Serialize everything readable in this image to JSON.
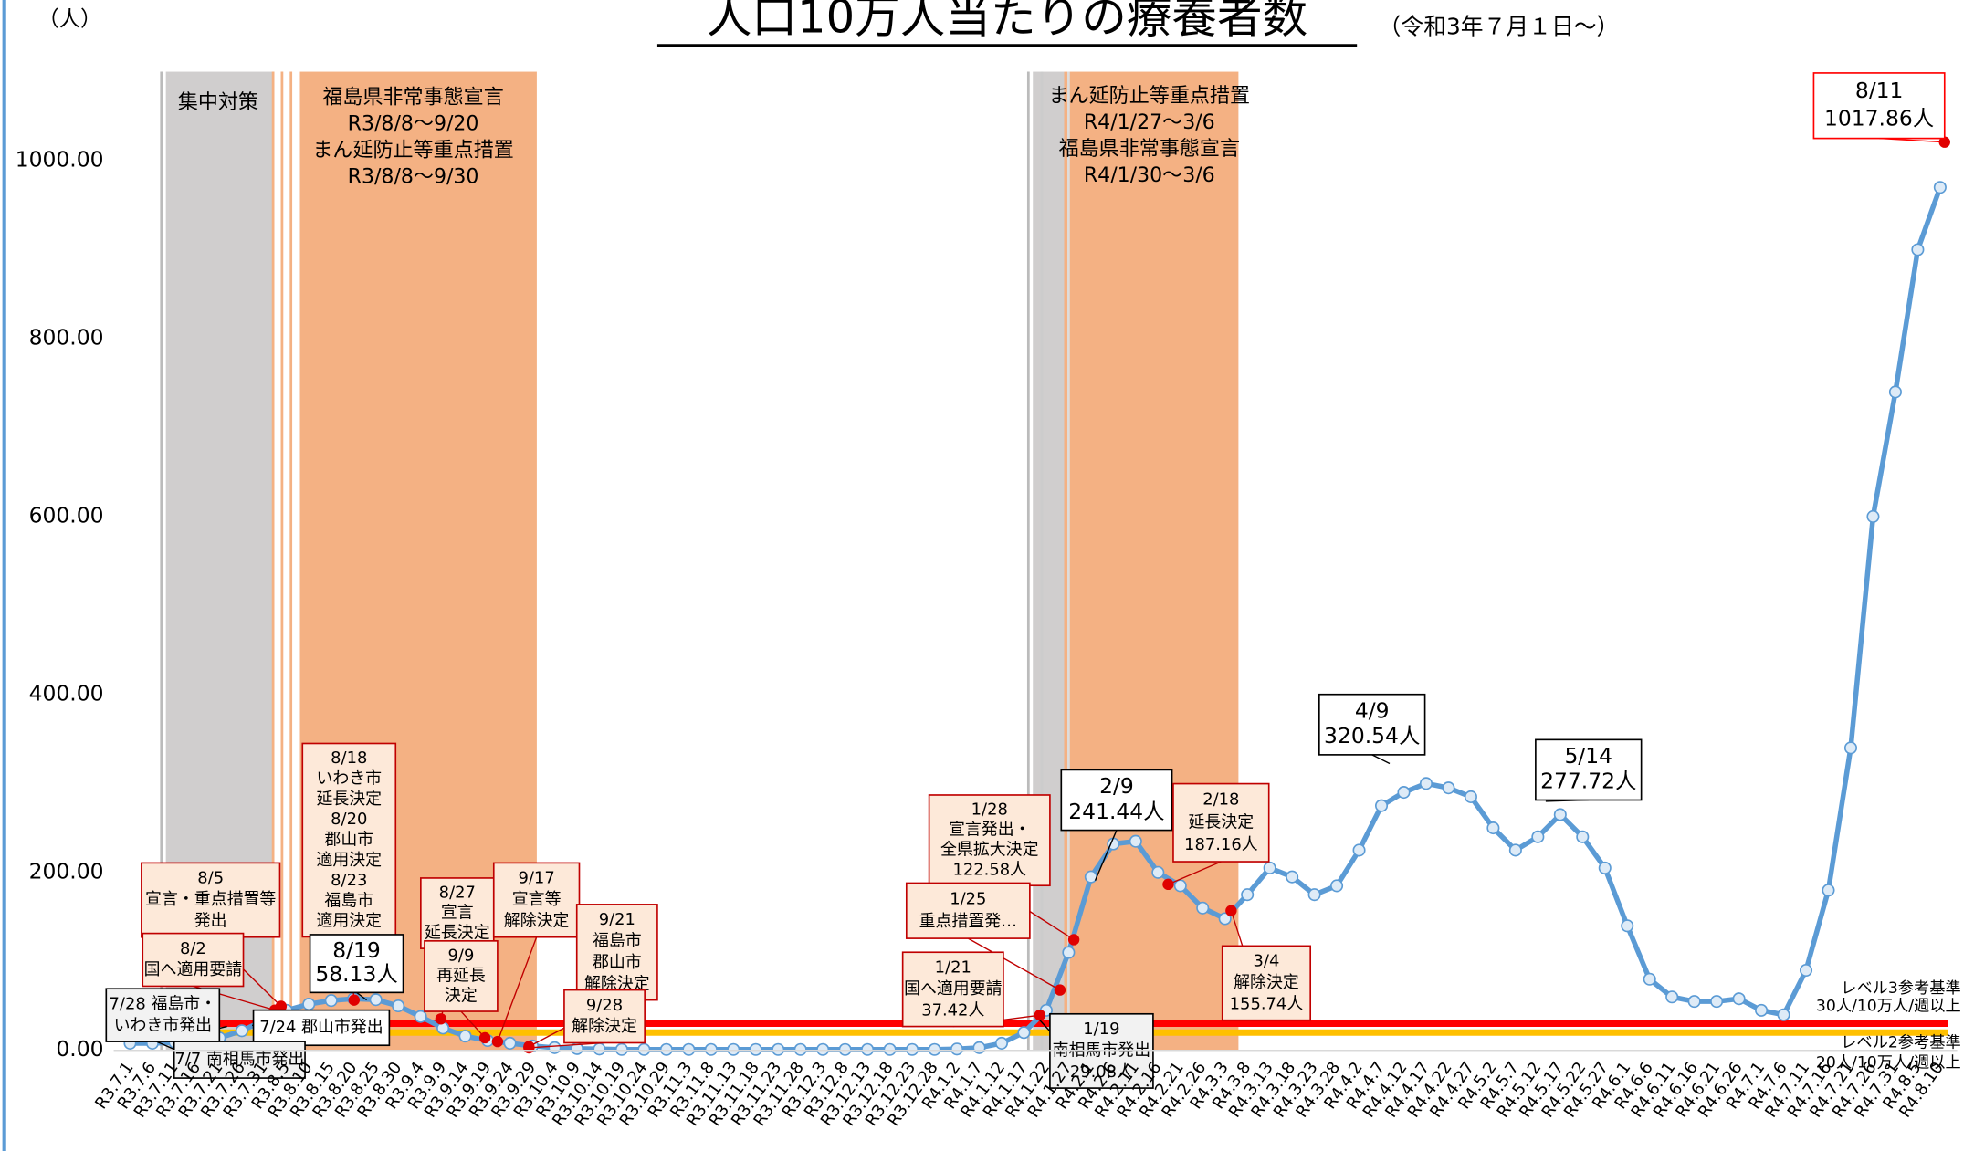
{
  "chart_data": {
    "type": "line",
    "title": "人口10万人当たりの療養者数",
    "subtitle": "（令和3年７月１日〜）",
    "y_unit": "（人）",
    "categories": [
      "R3.7.1",
      "R3.7.6",
      "R3.7.11",
      "R3.7.16",
      "R3.7.21",
      "R3.7.26",
      "R3.7.31",
      "R3.8.5",
      "R3.8.10",
      "R3.8.15",
      "R3.8.20",
      "R3.8.25",
      "R3.8.30",
      "R3.9.4",
      "R3.9.9",
      "R3.9.14",
      "R3.9.19",
      "R3.9.24",
      "R3.9.29",
      "R3.10.4",
      "R3.10.9",
      "R3.10.14",
      "R3.10.19",
      "R3.10.24",
      "R3.10.29",
      "R3.11.3",
      "R3.11.8",
      "R3.11.13",
      "R3.11.18",
      "R3.11.23",
      "R3.11.28",
      "R3.12.3",
      "R3.12.8",
      "R3.12.13",
      "R3.12.18",
      "R3.12.23",
      "R3.12.28",
      "R4.1.2",
      "R4.1.7",
      "R4.1.12",
      "R4.1.17",
      "R4.1.22",
      "R4.1.27",
      "R4.2.1",
      "R4.2.6",
      "R4.2.11",
      "R4.2.16",
      "R4.2.21",
      "R4.2.26",
      "R4.3.3",
      "R4.3.8",
      "R4.3.13",
      "R4.3.18",
      "R4.3.23",
      "R4.3.28",
      "R4.4.2",
      "R4.4.7",
      "R4.4.12",
      "R4.4.17",
      "R4.4.22",
      "R4.4.27",
      "R4.5.2",
      "R4.5.7",
      "R4.5.12",
      "R4.5.17",
      "R4.5.22",
      "R4.5.27",
      "R4.6.1",
      "R4.6.6",
      "R4.6.11",
      "R4.6.16",
      "R4.6.21",
      "R4.6.26",
      "R4.7.1",
      "R4.7.6",
      "R4.7.11",
      "R4.7.16",
      "R4.7.21",
      "R4.7.26",
      "R4.7.31",
      "R4.8.5",
      "R4.8.10"
    ],
    "values": [
      8,
      8,
      9,
      10,
      14,
      22,
      34,
      45,
      52,
      56,
      58,
      57,
      50,
      38,
      25,
      16,
      11,
      8,
      5,
      3,
      2,
      1.5,
      1,
      1,
      1,
      1,
      1,
      1,
      1,
      1,
      1,
      1,
      1,
      1,
      1,
      1,
      1,
      1.5,
      3,
      8,
      20,
      45,
      110,
      195,
      232,
      235,
      200,
      185,
      160,
      148,
      175,
      205,
      195,
      175,
      185,
      225,
      275,
      290,
      300,
      295,
      285,
      250,
      225,
      240,
      265,
      240,
      205,
      140,
      80,
      60,
      55,
      55,
      58,
      45,
      40,
      90,
      180,
      340,
      600,
      740,
      900,
      970
    ],
    "color": "#5b9bd5",
    "ylim": [
      0,
      1100
    ],
    "yticks": [
      {
        "value": 0,
        "label": "0.00"
      },
      {
        "value": 200,
        "label": "200.00"
      },
      {
        "value": 400,
        "label": "400.00"
      },
      {
        "value": 600,
        "label": "600.00"
      },
      {
        "value": 800,
        "label": "800.00"
      },
      {
        "value": 1000,
        "label": "1000.00"
      }
    ],
    "grid": false,
    "reference_lines": [
      {
        "value": 30,
        "color": "#ff0000",
        "label": [
          "レベル3参考基準",
          "30人/10万人/週以上"
        ]
      },
      {
        "value": 20,
        "color": "#ffc000",
        "label": [
          "レベル2参考基準",
          "20人/10万人/週以上"
        ]
      }
    ],
    "periods": [
      {
        "text": [
          "集中対策"
        ]
      },
      {
        "text": [
          "福島県非常事態宣言",
          "R3/8/8〜9/20",
          "まん延防止等重点措置",
          "R3/8/8〜9/30"
        ]
      },
      {
        "text": [
          "まん延防止等重点措置",
          "R4/1/27〜3/6",
          "福島県非常事態宣言",
          "R4/1/30〜3/6"
        ]
      }
    ],
    "annotations": [
      {
        "text": [
          "8/11",
          "1017.86人"
        ]
      },
      {
        "text": [
          "4/9",
          "320.54人"
        ]
      },
      {
        "text": [
          "5/14",
          "277.72人"
        ]
      },
      {
        "text": [
          "2/9",
          "241.44人"
        ]
      },
      {
        "text": [
          "2/18",
          "延長決定",
          "187.16人"
        ]
      },
      {
        "text": [
          "3/4",
          "解除決定",
          "155.74人"
        ]
      },
      {
        "text": [
          "1/28",
          "宣言発出・",
          "全県拡大決定",
          "122.58人"
        ]
      },
      {
        "text": [
          "1/25",
          "重点措置発…"
        ]
      },
      {
        "text": [
          "1/21",
          "国へ適用要請",
          "37.42人"
        ]
      },
      {
        "text": [
          "1/19",
          "南相馬市発出",
          "29.08人"
        ]
      },
      {
        "text": [
          "8/18",
          "いわき市",
          "延長決定",
          "8/20",
          "郡山市",
          "適用決定",
          "8/23",
          "福島市",
          "適用決定"
        ]
      },
      {
        "text": [
          "8/19",
          "58.13人"
        ]
      },
      {
        "text": [
          "8/5",
          "宣言・重点措置等",
          "発出"
        ]
      },
      {
        "text": [
          "8/2",
          "国へ適用要請"
        ]
      },
      {
        "text": [
          "7/28 福島市・",
          "いわき市発出"
        ]
      },
      {
        "text": [
          "7/24 郡山市発出"
        ]
      },
      {
        "text": [
          "7/7 南相馬市発出"
        ]
      },
      {
        "text": [
          "8/27",
          "宣言",
          "延長決定"
        ]
      },
      {
        "text": [
          "9/9",
          "再延長",
          "決定"
        ]
      },
      {
        "text": [
          "9/17",
          "宣言等",
          "解除決定"
        ]
      },
      {
        "text": [
          "9/21",
          "福島市",
          "郡山市",
          "解除決定"
        ]
      },
      {
        "text": [
          "9/28",
          "解除決定"
        ]
      }
    ]
  }
}
